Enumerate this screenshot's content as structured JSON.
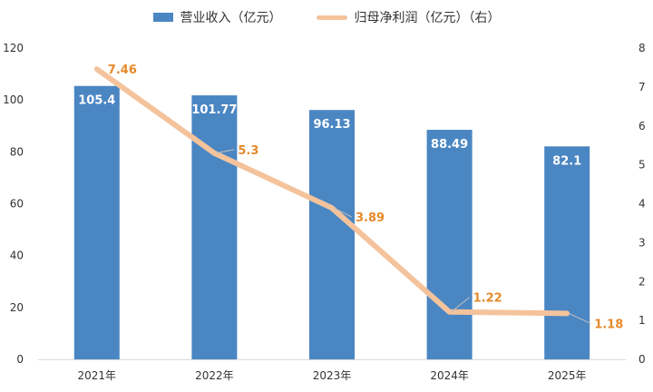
{
  "legend": {
    "bar_label": "营业收入（亿元）",
    "line_label": "归母净利润（亿元）（右）"
  },
  "colors": {
    "bar": "#4a86c2",
    "line": "#f4c39c",
    "line_label": "#e58a2b",
    "bar_label": "#ffffff",
    "axis_text": "#333333",
    "axis_line": "#d9d9d9",
    "leader_line": "#bfbfbf"
  },
  "chart_data": {
    "type": "bar",
    "categories": [
      "2021年",
      "2022年",
      "2023年",
      "2024年",
      "2025年"
    ],
    "series": [
      {
        "name": "营业收入（亿元）",
        "type": "bar",
        "axis": "left",
        "values": [
          105.4,
          101.77,
          96.13,
          88.49,
          82.1
        ],
        "labels": [
          "105.4",
          "101.77",
          "96.13",
          "88.49",
          "82.1"
        ]
      },
      {
        "name": "归母净利润（亿元）（右）",
        "type": "line",
        "axis": "right",
        "values": [
          7.46,
          5.3,
          3.89,
          1.22,
          1.18
        ],
        "labels": [
          "7.46",
          "5.3",
          "3.89",
          "1.22",
          "1.18"
        ]
      }
    ],
    "y_left": {
      "ylim": [
        0,
        120
      ],
      "ticks": [
        "0",
        "20",
        "40",
        "60",
        "80",
        "100",
        "120"
      ]
    },
    "y_right": {
      "ylim": [
        0,
        8
      ],
      "ticks": [
        "0",
        "1",
        "2",
        "3",
        "4",
        "5",
        "6",
        "7",
        "8"
      ]
    },
    "grid": false,
    "legend_position": "top"
  }
}
